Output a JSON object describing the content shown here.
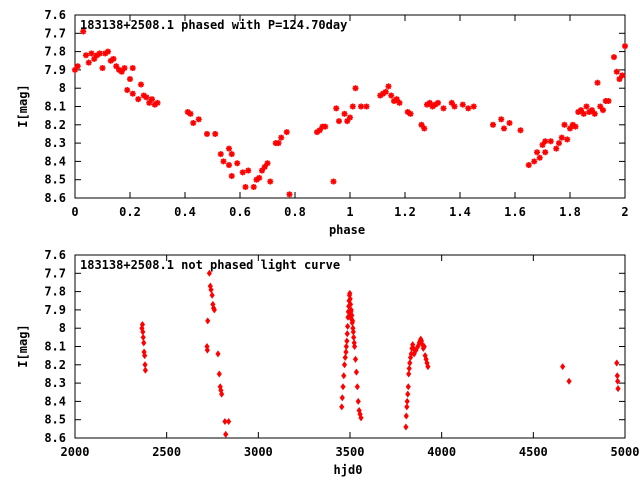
{
  "chart_data": [
    {
      "type": "scatter",
      "title": "183138+2508.1 phased with P=124.70day",
      "xlabel": "phase",
      "ylabel": "I[mag]",
      "xlim": [
        0,
        2
      ],
      "ylim": [
        8.6,
        7.6
      ],
      "y_inverted": true,
      "xticks": [
        "0",
        "0.2",
        "0.4",
        "0.6",
        "0.8",
        "1",
        "1.2",
        "1.4",
        "1.6",
        "1.8",
        "2"
      ],
      "yticks": [
        "7.6",
        "7.7",
        "7.8",
        "7.9",
        "8",
        "8.1",
        "8.2",
        "8.3",
        "8.4",
        "8.5",
        "8.6"
      ],
      "marker_color": "#ff0000",
      "marker": "plus-cross",
      "points": [
        [
          0.0,
          7.9
        ],
        [
          0.01,
          7.88
        ],
        [
          0.03,
          7.69
        ],
        [
          0.04,
          7.82
        ],
        [
          0.05,
          7.86
        ],
        [
          0.06,
          7.81
        ],
        [
          0.07,
          7.84
        ],
        [
          0.08,
          7.82
        ],
        [
          0.09,
          7.81
        ],
        [
          0.1,
          7.89
        ],
        [
          0.11,
          7.81
        ],
        [
          0.12,
          7.8
        ],
        [
          0.13,
          7.85
        ],
        [
          0.14,
          7.84
        ],
        [
          0.15,
          7.88
        ],
        [
          0.16,
          7.9
        ],
        [
          0.17,
          7.91
        ],
        [
          0.18,
          7.89
        ],
        [
          0.19,
          8.01
        ],
        [
          0.2,
          7.95
        ],
        [
          0.21,
          7.89
        ],
        [
          0.21,
          8.03
        ],
        [
          0.23,
          8.06
        ],
        [
          0.24,
          7.98
        ],
        [
          0.25,
          8.04
        ],
        [
          0.26,
          8.05
        ],
        [
          0.27,
          8.08
        ],
        [
          0.28,
          8.06
        ],
        [
          0.29,
          8.09
        ],
        [
          0.3,
          8.08
        ],
        [
          0.41,
          8.13
        ],
        [
          0.42,
          8.14
        ],
        [
          0.43,
          8.19
        ],
        [
          0.45,
          8.17
        ],
        [
          0.48,
          8.25
        ],
        [
          0.51,
          8.25
        ],
        [
          0.53,
          8.36
        ],
        [
          0.54,
          8.4
        ],
        [
          0.56,
          8.33
        ],
        [
          0.57,
          8.36
        ],
        [
          0.56,
          8.42
        ],
        [
          0.57,
          8.48
        ],
        [
          0.59,
          8.41
        ],
        [
          0.61,
          8.46
        ],
        [
          0.62,
          8.54
        ],
        [
          0.63,
          8.45
        ],
        [
          0.65,
          8.54
        ],
        [
          0.66,
          8.5
        ],
        [
          0.67,
          8.49
        ],
        [
          0.68,
          8.45
        ],
        [
          0.69,
          8.43
        ],
        [
          0.7,
          8.41
        ],
        [
          0.71,
          8.51
        ],
        [
          0.73,
          8.3
        ],
        [
          0.74,
          8.3
        ],
        [
          0.75,
          8.27
        ],
        [
          0.77,
          8.24
        ],
        [
          0.78,
          8.58
        ],
        [
          0.88,
          8.24
        ],
        [
          0.89,
          8.23
        ],
        [
          0.9,
          8.21
        ],
        [
          0.91,
          8.21
        ],
        [
          0.94,
          8.51
        ],
        [
          0.95,
          8.11
        ],
        [
          0.96,
          8.18
        ],
        [
          0.98,
          8.14
        ],
        [
          0.99,
          8.18
        ],
        [
          1.0,
          8.16
        ],
        [
          1.01,
          8.1
        ],
        [
          1.02,
          8.0
        ],
        [
          1.04,
          8.1
        ],
        [
          1.06,
          8.1
        ],
        [
          1.11,
          8.04
        ],
        [
          1.12,
          8.03
        ],
        [
          1.13,
          8.02
        ],
        [
          1.14,
          7.99
        ],
        [
          1.15,
          8.04
        ],
        [
          1.16,
          8.07
        ],
        [
          1.17,
          8.06
        ],
        [
          1.18,
          8.08
        ],
        [
          1.21,
          8.13
        ],
        [
          1.22,
          8.14
        ],
        [
          1.26,
          8.2
        ],
        [
          1.27,
          8.22
        ],
        [
          1.28,
          8.09
        ],
        [
          1.29,
          8.08
        ],
        [
          1.3,
          8.1
        ],
        [
          1.31,
          8.09
        ],
        [
          1.32,
          8.08
        ],
        [
          1.34,
          8.11
        ],
        [
          1.37,
          8.08
        ],
        [
          1.38,
          8.1
        ],
        [
          1.41,
          8.09
        ],
        [
          1.43,
          8.11
        ],
        [
          1.45,
          8.1
        ],
        [
          1.52,
          8.2
        ],
        [
          1.55,
          8.17
        ],
        [
          1.56,
          8.22
        ],
        [
          1.58,
          8.19
        ],
        [
          1.62,
          8.23
        ],
        [
          1.65,
          8.42
        ],
        [
          1.67,
          8.4
        ],
        [
          1.68,
          8.35
        ],
        [
          1.69,
          8.38
        ],
        [
          1.7,
          8.31
        ],
        [
          1.71,
          8.35
        ],
        [
          1.71,
          8.29
        ],
        [
          1.73,
          8.29
        ],
        [
          1.75,
          8.33
        ],
        [
          1.76,
          8.3
        ],
        [
          1.77,
          8.27
        ],
        [
          1.78,
          8.2
        ],
        [
          1.79,
          8.28
        ],
        [
          1.8,
          8.22
        ],
        [
          1.81,
          8.2
        ],
        [
          1.82,
          8.21
        ],
        [
          1.83,
          8.13
        ],
        [
          1.84,
          8.12
        ],
        [
          1.85,
          8.14
        ],
        [
          1.86,
          8.1
        ],
        [
          1.87,
          8.13
        ],
        [
          1.88,
          8.12
        ],
        [
          1.89,
          8.14
        ],
        [
          1.9,
          7.97
        ],
        [
          1.91,
          8.1
        ],
        [
          1.92,
          8.12
        ],
        [
          1.93,
          8.07
        ],
        [
          1.94,
          8.07
        ],
        [
          1.96,
          7.83
        ],
        [
          1.97,
          7.91
        ],
        [
          1.98,
          7.95
        ],
        [
          1.99,
          7.93
        ],
        [
          2.0,
          7.77
        ]
      ]
    },
    {
      "type": "scatter",
      "title": "183138+2508.1 not phased light curve",
      "xlabel": "hjd0",
      "ylabel": "I[mag]",
      "xlim": [
        2000,
        5000
      ],
      "ylim": [
        8.6,
        7.6
      ],
      "y_inverted": true,
      "xticks": [
        "2000",
        "2500",
        "3000",
        "3500",
        "4000",
        "4500",
        "5000"
      ],
      "yticks": [
        "7.6",
        "7.7",
        "7.8",
        "7.9",
        "8",
        "8.1",
        "8.2",
        "8.3",
        "8.4",
        "8.5",
        "8.6"
      ],
      "marker_color": "#ff0000",
      "marker": "diamond",
      "points": [
        [
          2365,
          8.0
        ],
        [
          2368,
          7.98
        ],
        [
          2370,
          8.02
        ],
        [
          2372,
          8.05
        ],
        [
          2375,
          8.08
        ],
        [
          2377,
          8.13
        ],
        [
          2380,
          8.15
        ],
        [
          2382,
          8.2
        ],
        [
          2384,
          8.23
        ],
        [
          2720,
          8.1
        ],
        [
          2722,
          8.12
        ],
        [
          2724,
          7.96
        ],
        [
          2733,
          7.7
        ],
        [
          2738,
          7.77
        ],
        [
          2742,
          7.79
        ],
        [
          2748,
          7.82
        ],
        [
          2752,
          7.87
        ],
        [
          2756,
          7.89
        ],
        [
          2760,
          7.9
        ],
        [
          2780,
          8.14
        ],
        [
          2787,
          8.25
        ],
        [
          2792,
          8.32
        ],
        [
          2796,
          8.34
        ],
        [
          2800,
          8.36
        ],
        [
          2818,
          8.51
        ],
        [
          2822,
          8.58
        ],
        [
          2838,
          8.51
        ],
        [
          3455,
          8.43
        ],
        [
          3458,
          8.38
        ],
        [
          3462,
          8.32
        ],
        [
          3466,
          8.26
        ],
        [
          3470,
          8.2
        ],
        [
          3474,
          8.16
        ],
        [
          3478,
          8.13
        ],
        [
          3480,
          8.1
        ],
        [
          3483,
          8.07
        ],
        [
          3485,
          8.03
        ],
        [
          3487,
          7.99
        ],
        [
          3489,
          7.94
        ],
        [
          3491,
          7.91
        ],
        [
          3493,
          7.88
        ],
        [
          3495,
          7.85
        ],
        [
          3497,
          7.82
        ],
        [
          3499,
          7.81
        ],
        [
          3501,
          7.84
        ],
        [
          3503,
          7.87
        ],
        [
          3505,
          7.91
        ],
        [
          3508,
          7.95
        ],
        [
          3512,
          7.97
        ],
        [
          3516,
          8.0
        ],
        [
          3520,
          8.05
        ],
        [
          3525,
          8.1
        ],
        [
          3530,
          8.17
        ],
        [
          3535,
          8.24
        ],
        [
          3540,
          8.32
        ],
        [
          3545,
          8.4
        ],
        [
          3550,
          8.45
        ],
        [
          3555,
          8.47
        ],
        [
          3560,
          8.49
        ],
        [
          3502,
          7.93
        ],
        [
          3506,
          7.9
        ],
        [
          3510,
          7.93
        ],
        [
          3514,
          7.96
        ],
        [
          3518,
          8.02
        ],
        [
          3523,
          8.08
        ],
        [
          3805,
          8.54
        ],
        [
          3807,
          8.48
        ],
        [
          3810,
          8.43
        ],
        [
          3812,
          8.4
        ],
        [
          3815,
          8.36
        ],
        [
          3818,
          8.32
        ],
        [
          3820,
          8.25
        ],
        [
          3823,
          8.22
        ],
        [
          3826,
          8.19
        ],
        [
          3830,
          8.16
        ],
        [
          3834,
          8.14
        ],
        [
          3838,
          8.11
        ],
        [
          3842,
          8.09
        ],
        [
          3846,
          8.11
        ],
        [
          3850,
          8.14
        ],
        [
          3860,
          8.12
        ],
        [
          3870,
          8.1
        ],
        [
          3878,
          8.08
        ],
        [
          3882,
          8.07
        ],
        [
          3886,
          8.06
        ],
        [
          3890,
          8.07
        ],
        [
          3895,
          8.09
        ],
        [
          3900,
          8.11
        ],
        [
          3905,
          8.1
        ],
        [
          3910,
          8.15
        ],
        [
          3915,
          8.17
        ],
        [
          3920,
          8.19
        ],
        [
          3925,
          8.21
        ],
        [
          4660,
          8.21
        ],
        [
          4695,
          8.29
        ],
        [
          4955,
          8.19
        ],
        [
          4958,
          8.26
        ],
        [
          4960,
          8.29
        ],
        [
          4962,
          8.33
        ]
      ]
    }
  ]
}
